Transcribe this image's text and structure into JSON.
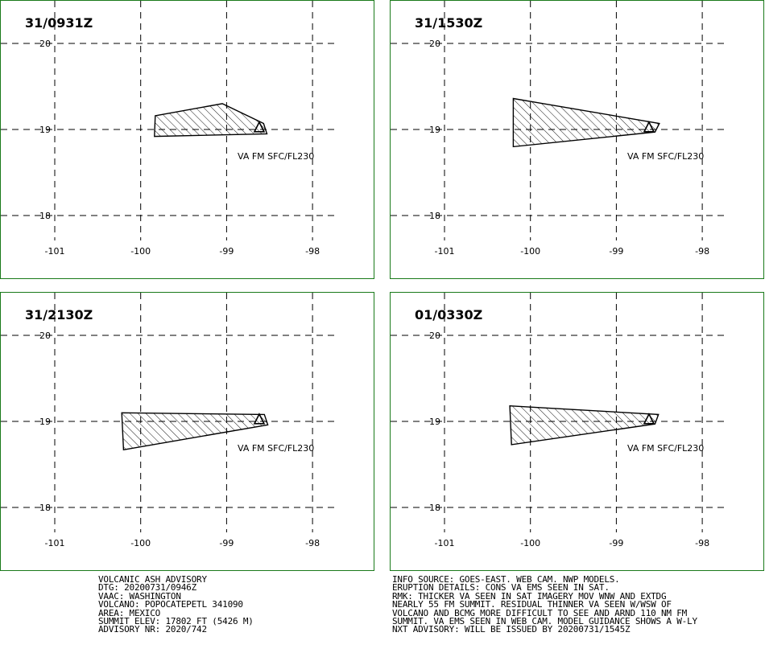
{
  "map": {
    "lon_ticks": [
      -101,
      -100,
      -99,
      -98
    ],
    "lat_ticks": [
      20,
      19,
      18
    ],
    "lon_labels": [
      "-101",
      "-100",
      "-99",
      "-98"
    ],
    "lat_labels": [
      "20",
      "19",
      "18"
    ],
    "volcano": {
      "name": "POPOCATEPETL",
      "lat": 19.02,
      "lon": -98.62
    },
    "colors": {
      "frame": "#1a7a1a",
      "grid": "#000000",
      "hatch": "#000000"
    }
  },
  "panels": [
    {
      "title": "31/0931Z",
      "level": "VA FM SFC/FL230",
      "polygon": [
        [
          -99.83,
          19.16
        ],
        [
          -99.05,
          19.3
        ],
        [
          -98.57,
          19.07
        ],
        [
          -98.53,
          18.95
        ],
        [
          -99.84,
          18.92
        ]
      ]
    },
    {
      "title": "31/1530Z",
      "level": "VA FM SFC/FL230",
      "polygon": [
        [
          -100.2,
          19.36
        ],
        [
          -98.5,
          19.07
        ],
        [
          -98.55,
          18.97
        ],
        [
          -100.2,
          18.8
        ]
      ]
    },
    {
      "title": "31/2130Z",
      "level": "VA FM SFC/FL230",
      "polygon": [
        [
          -100.22,
          19.1
        ],
        [
          -98.56,
          19.08
        ],
        [
          -98.52,
          18.96
        ],
        [
          -100.2,
          18.67
        ]
      ]
    },
    {
      "title": "01/0330Z",
      "level": "VA FM SFC/FL230",
      "polygon": [
        [
          -100.24,
          19.18
        ],
        [
          -98.51,
          19.08
        ],
        [
          -98.55,
          18.97
        ],
        [
          -100.22,
          18.73
        ]
      ]
    }
  ],
  "advisory_left": [
    "VOLCANIC ASH ADVISORY",
    "DTG: 20200731/0946Z",
    "VAAC: WASHINGTON",
    "VOLCANO: POPOCATEPETL 341090",
    "AREA: MEXICO",
    "SUMMIT ELEV: 17802 FT (5426 M)",
    "ADVISORY NR: 2020/742"
  ],
  "advisory_right": [
    "INFO SOURCE: GOES-EAST. WEB CAM. NWP MODELS.",
    "ERUPTION DETAILS: CONS VA EMS SEEN IN SAT.",
    "RMK: THICKER VA SEEN IN SAT IMAGERY MOV WNW AND EXTDG",
    "NEARLY 55 FM SUMMIT. RESIDUAL THINNER VA SEEN W/WSW OF",
    "VOLCANO AND BCMG MORE DIFFICULT TO SEE AND ARND 110 NM FM",
    "SUMMIT. VA EMS SEEN IN WEB CAM. MODEL GUIDANCE SHOWS A W-LY",
    "NXT ADVISORY: WILL BE ISSUED BY 20200731/1545Z"
  ]
}
